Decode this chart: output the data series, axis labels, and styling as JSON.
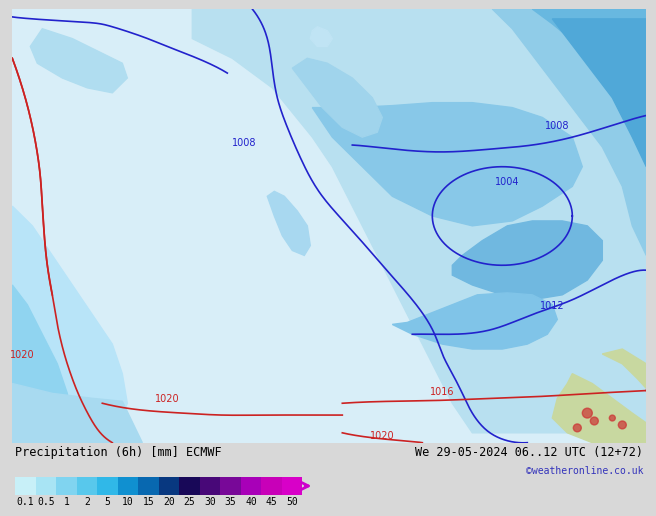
{
  "title_left": "Precipitation (6h) [mm] ECMWF",
  "title_right": "We 29-05-2024 06..12 UTC (12+72)",
  "watermark": "©weatheronline.co.uk",
  "colorbar_labels": [
    "0.1",
    "0.5",
    "1",
    "2",
    "5",
    "10",
    "15",
    "20",
    "25",
    "30",
    "35",
    "40",
    "45",
    "50"
  ],
  "colorbar_colors": [
    "#c8f0f8",
    "#a8e4f4",
    "#80d4f0",
    "#58c8ec",
    "#30b8e8",
    "#1090d0",
    "#0868b0",
    "#083880",
    "#180858",
    "#480878",
    "#780898",
    "#a800b8",
    "#c800b8",
    "#d800c8"
  ],
  "arrow_color": "#cc00cc",
  "background_color": "#d8d8d8",
  "ocean_color": "#e8e8f0",
  "title_fontsize": 8.5,
  "label_fontsize": 7,
  "watermark_color": "#3333bb",
  "watermark_fontsize": 7,
  "blue_line_color": "#2222cc",
  "red_line_color": "#cc2222",
  "isobar_label_color_blue": "#2222cc",
  "isobar_label_color_red": "#cc2222",
  "land_color": "#d0d8d0",
  "precip_light1": "#c8eef8",
  "precip_light2": "#a0d8f0",
  "precip_mid1": "#78c8ec",
  "precip_mid2": "#50b8e8",
  "precip_dark1": "#2898d0",
  "precip_dark2": "#1078b0",
  "green_land": "#c8d8a0"
}
